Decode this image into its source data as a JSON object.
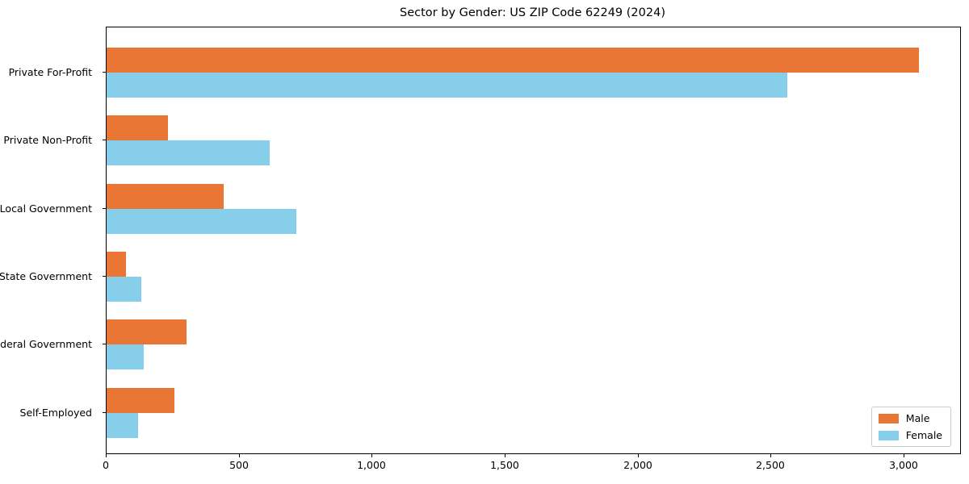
{
  "chart_data": {
    "type": "bar",
    "orientation": "horizontal",
    "title": "Sector by Gender: US ZIP Code 62249 (2024)",
    "categories": [
      "Private For-Profit",
      "Private Non-Profit",
      "Local Government",
      "State Government",
      "Federal Government",
      "Self-Employed"
    ],
    "series": [
      {
        "name": "Male",
        "color": "#E97634",
        "values": [
          3055,
          232,
          440,
          73,
          300,
          254
        ]
      },
      {
        "name": "Female",
        "color": "#87CEEB",
        "values": [
          2560,
          612,
          715,
          130,
          140,
          119
        ]
      }
    ],
    "xlim": [
      0,
      3210
    ],
    "x_ticks": [
      0,
      500,
      1000,
      1500,
      2000,
      2500,
      3000
    ],
    "x_tick_labels": [
      "0",
      "500",
      "1,000",
      "1,500",
      "2,000",
      "2,500",
      "3,000"
    ],
    "xlabel": "",
    "ylabel": "",
    "grid": false,
    "legend_position": "lower right",
    "spine_color": "#000000",
    "background_color": "#ffffff"
  }
}
